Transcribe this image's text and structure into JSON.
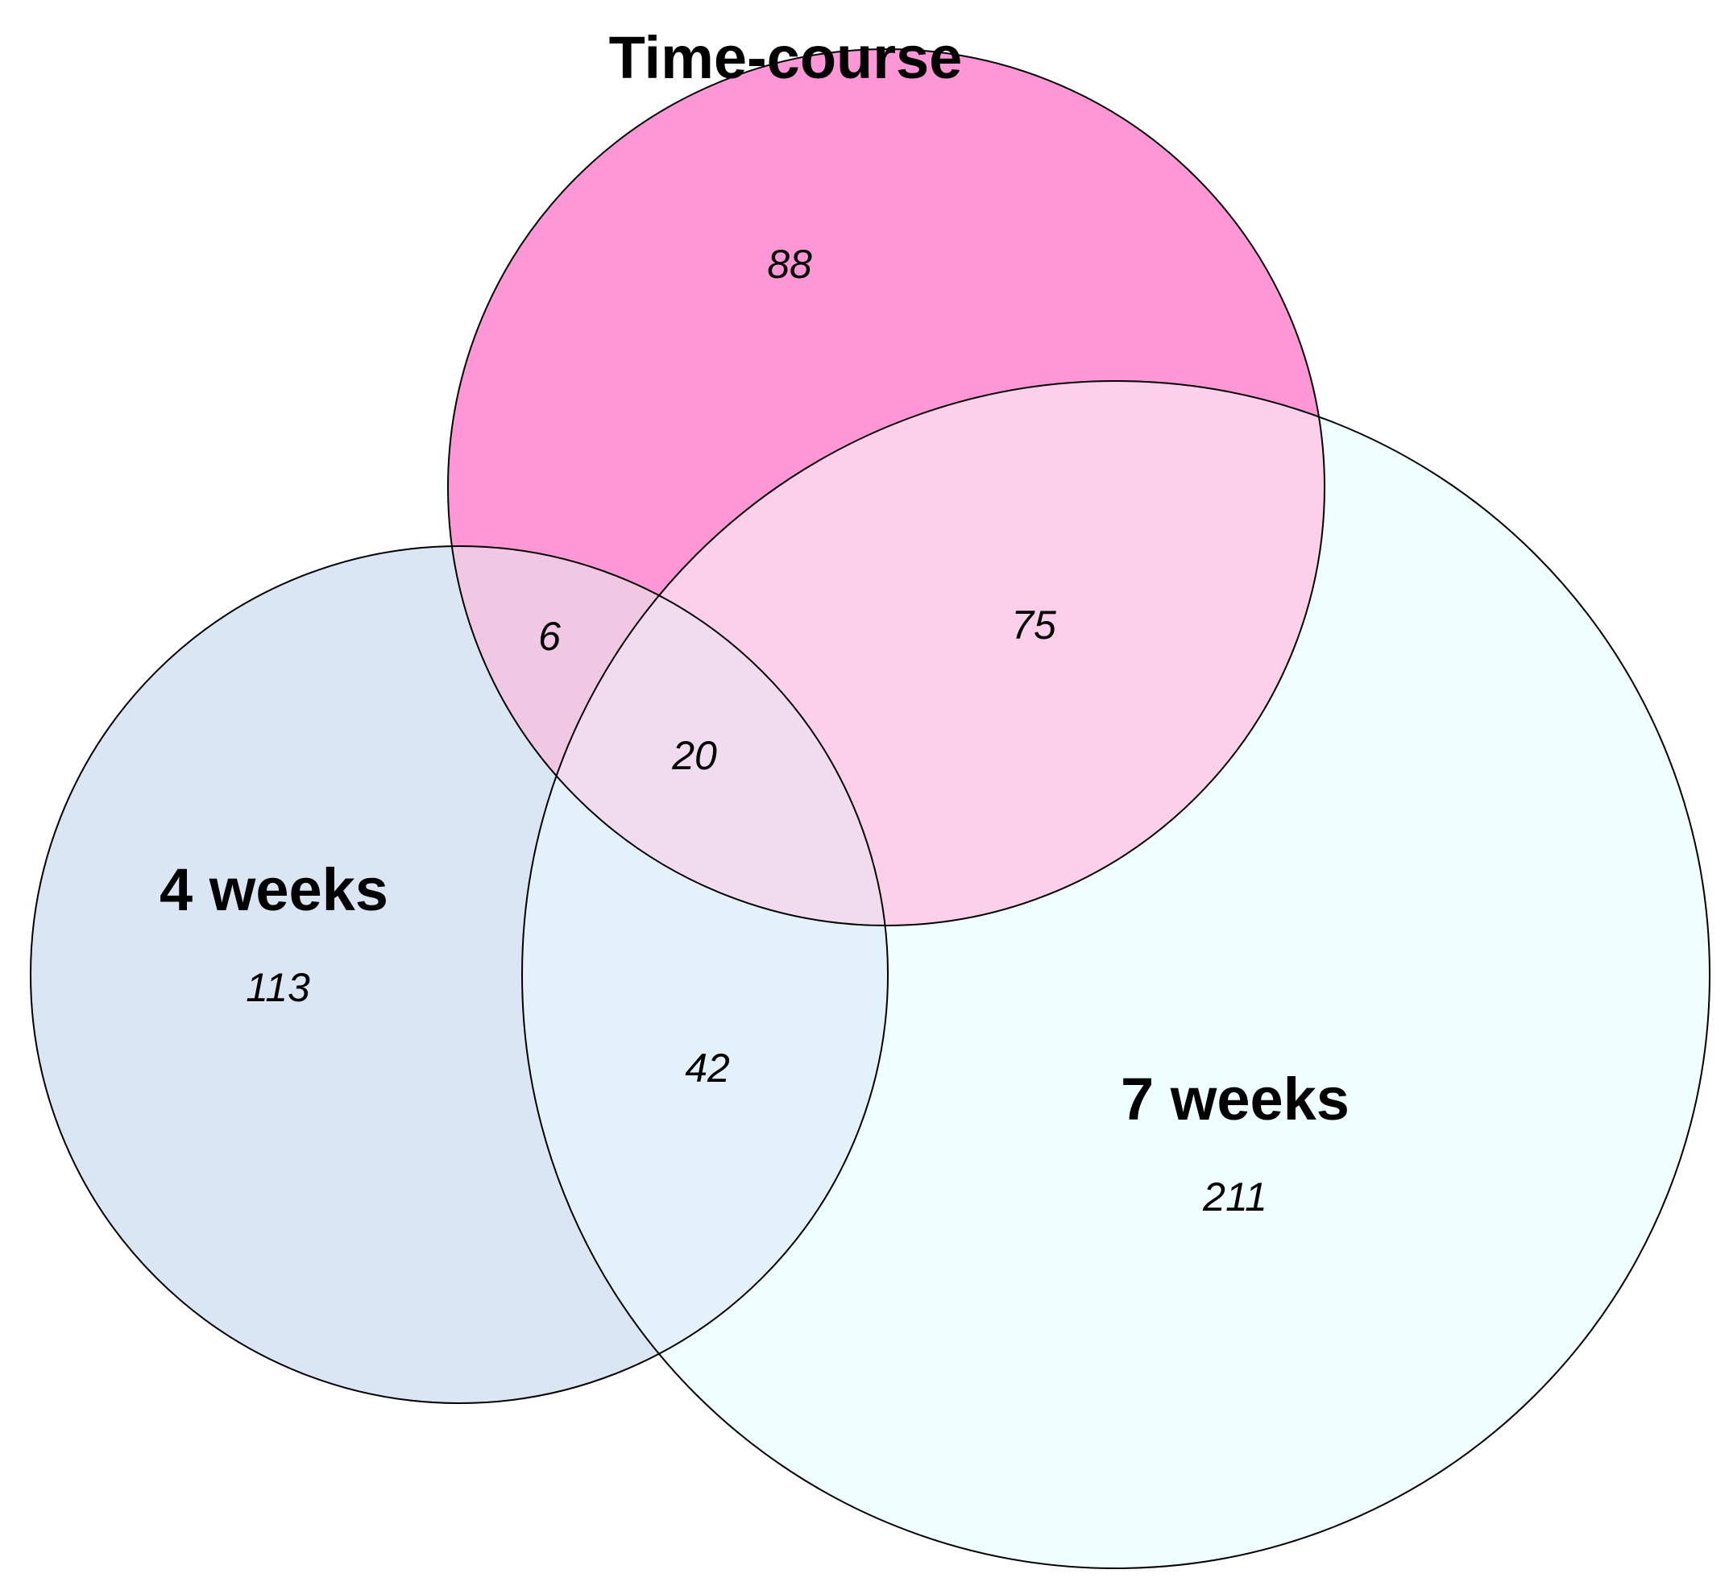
{
  "sets": {
    "time_course": {
      "label": "Time-course",
      "color": "#ff96d6"
    },
    "four_weeks": {
      "label": "4 weeks",
      "color": "#dbe6f5"
    },
    "seven_weeks": {
      "label": "7 weeks",
      "color": "#efffff"
    }
  },
  "regions": {
    "time_course_only": 88,
    "four_weeks_only": 113,
    "seven_weeks_only": 211,
    "time_course_and_four_weeks": 6,
    "time_course_and_seven_weeks": 75,
    "four_weeks_and_seven_weeks": 42,
    "all_three": 20
  }
}
